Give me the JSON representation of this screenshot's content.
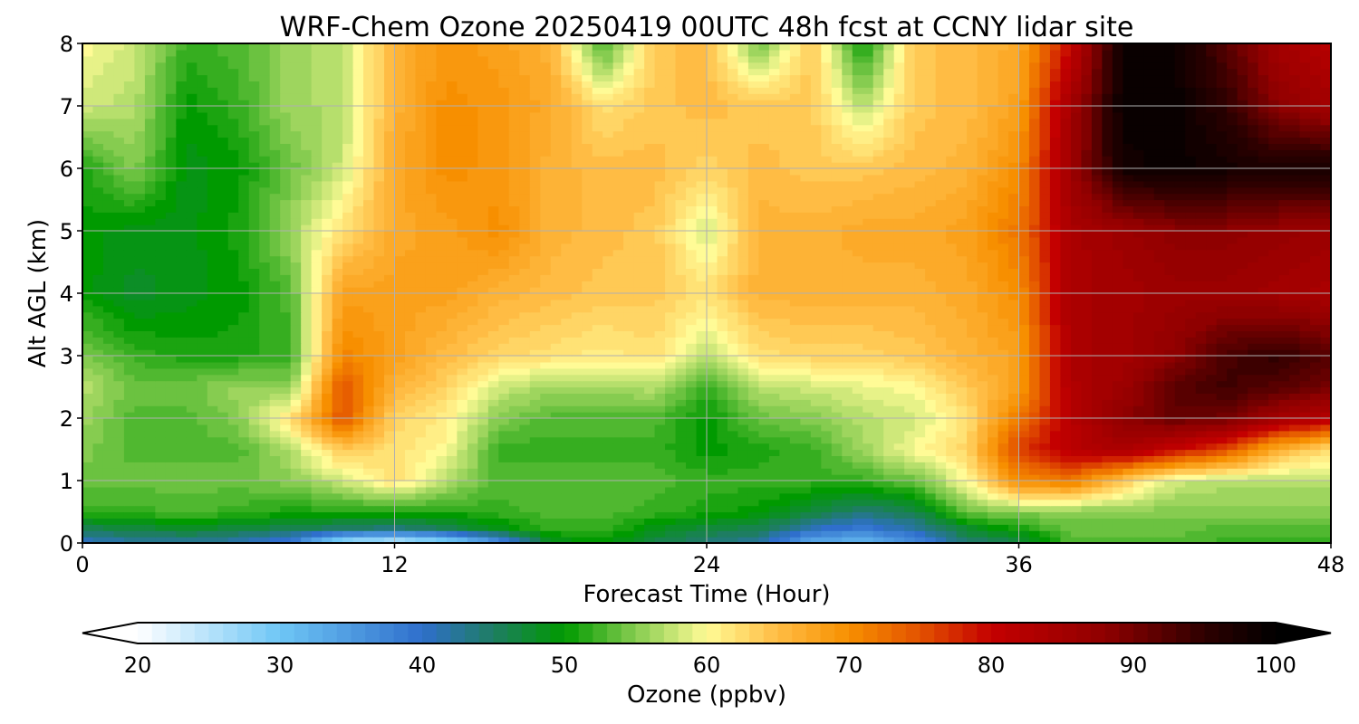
{
  "chart_data": {
    "type": "heatmap",
    "title": "WRF-Chem Ozone  20250419 00UTC 48h fcst at CCNY lidar site",
    "xlabel": "Forecast Time (Hour)",
    "ylabel": "Alt AGL (km)",
    "xlim": [
      0,
      48
    ],
    "ylim": [
      0,
      8
    ],
    "x_ticks": [
      "0",
      "12",
      "24",
      "36",
      "48"
    ],
    "y_ticks": [
      "0",
      "1",
      "2",
      "3",
      "4",
      "5",
      "6",
      "7",
      "8"
    ],
    "grid": true,
    "colorbar": {
      "label": "Ozone  (ppbv)",
      "range": [
        20,
        100
      ],
      "extend": "both",
      "ticks": [
        "20",
        "30",
        "40",
        "50",
        "60",
        "70",
        "80",
        "90",
        "100"
      ],
      "color_stops": [
        {
          "value": 20,
          "color": "#ffffff"
        },
        {
          "value": 30,
          "color": "#6ec6f5"
        },
        {
          "value": 40,
          "color": "#2f6fcc"
        },
        {
          "value": 45,
          "color": "#1e7d62"
        },
        {
          "value": 50,
          "color": "#009a00"
        },
        {
          "value": 55,
          "color": "#86cc50"
        },
        {
          "value": 60,
          "color": "#fffb96"
        },
        {
          "value": 65,
          "color": "#ffbc44"
        },
        {
          "value": 70,
          "color": "#f78f00"
        },
        {
          "value": 75,
          "color": "#e35200"
        },
        {
          "value": 80,
          "color": "#c40000"
        },
        {
          "value": 88,
          "color": "#8f0000"
        },
        {
          "value": 95,
          "color": "#2e0000"
        },
        {
          "value": 100,
          "color": "#000000"
        }
      ]
    },
    "hours": [
      0,
      2,
      4,
      6,
      8,
      10,
      12,
      14,
      16,
      18,
      20,
      22,
      24,
      26,
      28,
      30,
      32,
      34,
      36,
      38,
      40,
      42,
      44,
      46,
      48
    ],
    "altitudes_km": [
      0,
      0.25,
      0.5,
      1,
      1.5,
      2,
      2.5,
      3,
      4,
      5,
      6,
      7,
      8
    ],
    "ozone_ppbv": [
      [
        40,
        42,
        42,
        41,
        38,
        25,
        23,
        26,
        35,
        48,
        50,
        46,
        44,
        42,
        33,
        31,
        36,
        44,
        46,
        53,
        53,
        53,
        52,
        52,
        52
      ],
      [
        46,
        47,
        48,
        47,
        46,
        45,
        44,
        46,
        49,
        52,
        52,
        49,
        47,
        46,
        41,
        39,
        42,
        48,
        51,
        54,
        54,
        54,
        53,
        53,
        53
      ],
      [
        52,
        52,
        53,
        52,
        51,
        51,
        51,
        51,
        52,
        53,
        53,
        52,
        51,
        50,
        47,
        44,
        46,
        54,
        55,
        55,
        55,
        55,
        55,
        55,
        55
      ],
      [
        54,
        54,
        54,
        54,
        55,
        58,
        62,
        57,
        53,
        53,
        53,
        53,
        52,
        52,
        52,
        52,
        54,
        60,
        70,
        72,
        64,
        58,
        57,
        57,
        57
      ],
      [
        55,
        53,
        53,
        53,
        57,
        64,
        62,
        60,
        52,
        52,
        52,
        52,
        50,
        51,
        52,
        56,
        60,
        63,
        76,
        82,
        84,
        80,
        75,
        66,
        62
      ],
      [
        56,
        53,
        53,
        55,
        62,
        75,
        63,
        61,
        55,
        53,
        53,
        53,
        50,
        54,
        55,
        57,
        58,
        62,
        72,
        82,
        88,
        91,
        90,
        85,
        82
      ],
      [
        57,
        54,
        54,
        56,
        55,
        75,
        66,
        63,
        58,
        56,
        56,
        57,
        52,
        57,
        58,
        59,
        60,
        64,
        68,
        83,
        86,
        92,
        94,
        92,
        90
      ],
      [
        55,
        52,
        51,
        51,
        52,
        71,
        68,
        65,
        63,
        62,
        61,
        62,
        57,
        62,
        63,
        63,
        64,
        66,
        68,
        84,
        85,
        88,
        93,
        95,
        92
      ],
      [
        50,
        48,
        49,
        50,
        53,
        68,
        68,
        68,
        66,
        65,
        64,
        64,
        62,
        66,
        66,
        66,
        66,
        67,
        70,
        84,
        85,
        86,
        86,
        85,
        84
      ],
      [
        50,
        49,
        49,
        51,
        56,
        62,
        67,
        68,
        70,
        66,
        65,
        64,
        58,
        66,
        66,
        67,
        67,
        68,
        72,
        84,
        86,
        88,
        88,
        87,
        86
      ],
      [
        51,
        55,
        49,
        50,
        54,
        58,
        67,
        70,
        69,
        66,
        65,
        65,
        63,
        65,
        64,
        64,
        65,
        66,
        70,
        86,
        98,
        99,
        98,
        97,
        98
      ],
      [
        58,
        57,
        50,
        52,
        56,
        57,
        66,
        70,
        69,
        67,
        62,
        64,
        65,
        64,
        64,
        57,
        64,
        65,
        68,
        85,
        99,
        99,
        95,
        88,
        85
      ],
      [
        60,
        58,
        52,
        53,
        56,
        57,
        66,
        69,
        68,
        66,
        52,
        64,
        65,
        54,
        64,
        50,
        64,
        65,
        67,
        80,
        99,
        99,
        92,
        85,
        82
      ]
    ]
  }
}
